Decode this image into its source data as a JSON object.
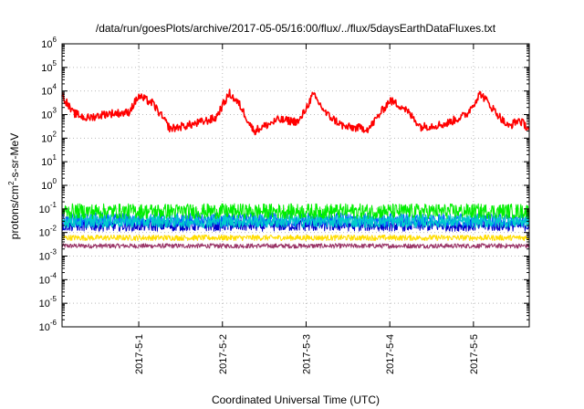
{
  "chart_data": {
    "type": "line",
    "title": "/data/run/goesPlots/archive/2017-05-05/16:00/flux/../flux/5daysEarthDataFluxes.txt",
    "xlabel": "Coordinated Universal Time (UTC)",
    "ylabel": "protons/cm²-s-sr-MeV",
    "ylabel_parts": {
      "before": "protons/cm",
      "sup": "2",
      "after": "-s-sr-MeV"
    },
    "yscale": "log",
    "ylim_exponents": [
      -6,
      6
    ],
    "y_ticks": [
      {
        "base": "10",
        "exp": "-6"
      },
      {
        "base": "10",
        "exp": "-5"
      },
      {
        "base": "10",
        "exp": "-4"
      },
      {
        "base": "10",
        "exp": "-3"
      },
      {
        "base": "10",
        "exp": "-2"
      },
      {
        "base": "10",
        "exp": "-1"
      },
      {
        "base": "10",
        "exp": "0"
      },
      {
        "base": "10",
        "exp": "1"
      },
      {
        "base": "10",
        "exp": "2"
      },
      {
        "base": "10",
        "exp": "3"
      },
      {
        "base": "10",
        "exp": "4"
      },
      {
        "base": "10",
        "exp": "5"
      },
      {
        "base": "10",
        "exp": "6"
      }
    ],
    "x_range_days": [
      "2017-04-30 02:00",
      "2017-05-05 16:00"
    ],
    "x_ticks": [
      "2017-5-1",
      "2017-5-2",
      "2017-5-3",
      "2017-5-4",
      "2017-5-5"
    ],
    "grid": true,
    "series": [
      {
        "color": "#ff0000",
        "style": "noisy",
        "points": [
          [
            "2017-04-30 02:00",
            7000
          ],
          [
            "2017-04-30 05:00",
            1200
          ],
          [
            "2017-04-30 09:00",
            700
          ],
          [
            "2017-04-30 15:00",
            1100
          ],
          [
            "2017-04-30 21:00",
            1200
          ],
          [
            "2017-05-01 00:00",
            6000
          ],
          [
            "2017-05-01 04:00",
            3000
          ],
          [
            "2017-05-01 09:00",
            250
          ],
          [
            "2017-05-01 16:00",
            400
          ],
          [
            "2017-05-01 22:00",
            700
          ],
          [
            "2017-05-02 02:00",
            8000
          ],
          [
            "2017-05-02 05:00",
            2500
          ],
          [
            "2017-05-02 09:00",
            200
          ],
          [
            "2017-05-02 16:00",
            600
          ],
          [
            "2017-05-02 22:00",
            500
          ],
          [
            "2017-05-03 02:00",
            7000
          ],
          [
            "2017-05-03 06:00",
            1000
          ],
          [
            "2017-05-03 11:00",
            300
          ],
          [
            "2017-05-03 18:00",
            250
          ],
          [
            "2017-05-04 00:00",
            4000
          ],
          [
            "2017-05-04 04:00",
            2000
          ],
          [
            "2017-05-04 09:00",
            300
          ],
          [
            "2017-05-04 16:00",
            400
          ],
          [
            "2017-05-04 22:00",
            1000
          ],
          [
            "2017-05-05 02:00",
            8000
          ],
          [
            "2017-05-05 06:00",
            1500
          ],
          [
            "2017-05-05 10:00",
            300
          ],
          [
            "2017-05-05 13:00",
            600
          ],
          [
            "2017-05-05 16:00",
            250
          ]
        ]
      },
      {
        "color": "#00ee00",
        "style": "band",
        "center": 0.08,
        "spread_decades": 0.32
      },
      {
        "color": "#00cccc",
        "style": "band",
        "center": 0.03,
        "spread_decades": 0.28
      },
      {
        "color": "#0066ff",
        "style": "band",
        "center": 0.035,
        "spread_decades": 0.3
      },
      {
        "color": "#0000cc",
        "style": "band",
        "center": 0.02,
        "spread_decades": 0.25
      },
      {
        "color": "#ffdd00",
        "style": "band",
        "center": 0.006,
        "spread_decades": 0.12
      },
      {
        "color": "#993366",
        "style": "band",
        "center": 0.0027,
        "spread_decades": 0.1
      }
    ]
  }
}
